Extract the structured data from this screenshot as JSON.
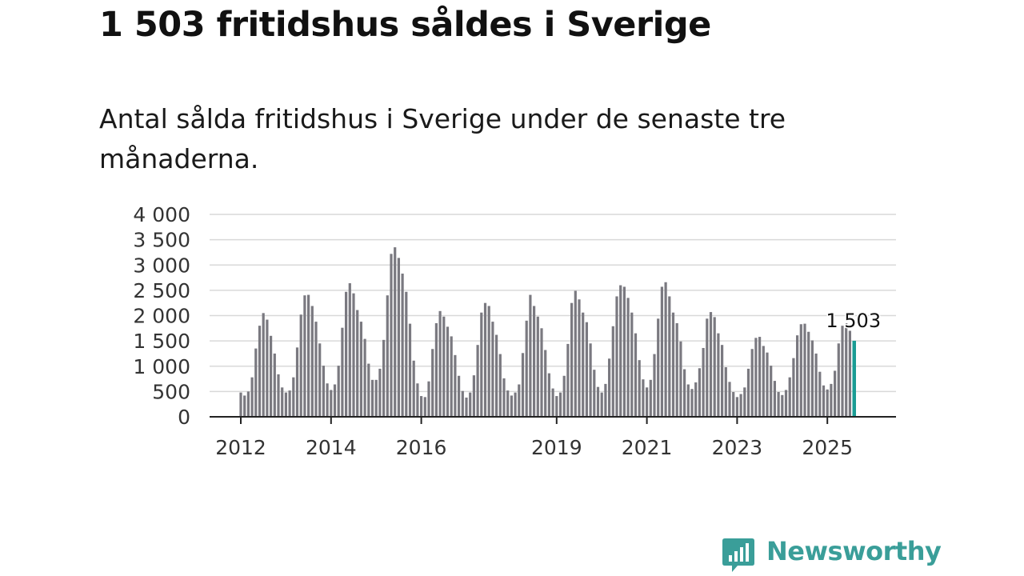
{
  "title": "1 503 fritidshus såldes i Sverige",
  "subtitle": "Antal sålda fritidshus i Sverige under de senaste tre månaderna.",
  "logo": {
    "name": "Newsworthy",
    "icon": "newsworthy-logo-icon",
    "color": "#3a9e99"
  },
  "colors": {
    "bar": "#7a7980",
    "highlight": "#1a9c94",
    "grid": "#d9d9d9",
    "axis": "#222222"
  },
  "chart_data": {
    "type": "bar",
    "ylim": [
      0,
      4000
    ],
    "yticks": [
      0,
      500,
      1000,
      1500,
      2000,
      2500,
      3000,
      3500,
      4000
    ],
    "ytick_labels": [
      "0",
      "500",
      "1 000",
      "1 500",
      "2 000",
      "2 500",
      "3 000",
      "3 500",
      "4 000"
    ],
    "xtick_labels": [
      {
        "label": "2012",
        "month_index": 0
      },
      {
        "label": "2014",
        "month_index": 24
      },
      {
        "label": "2016",
        "month_index": 48
      },
      {
        "label": "2019",
        "month_index": 84
      },
      {
        "label": "2021",
        "month_index": 108
      },
      {
        "label": "2023",
        "month_index": 132
      },
      {
        "label": "2025",
        "month_index": 156
      }
    ],
    "start": "2012-01",
    "grid": true,
    "annotation": {
      "text": "1 503",
      "target": "last"
    },
    "values": [
      480,
      420,
      500,
      780,
      1350,
      1800,
      2050,
      1920,
      1600,
      1250,
      840,
      580,
      480,
      520,
      780,
      1370,
      2020,
      2400,
      2410,
      2190,
      1880,
      1450,
      1010,
      660,
      530,
      640,
      1010,
      1760,
      2470,
      2640,
      2440,
      2110,
      1880,
      1540,
      1050,
      730,
      730,
      950,
      1520,
      2400,
      3220,
      3350,
      3140,
      2830,
      2470,
      1840,
      1110,
      660,
      410,
      390,
      700,
      1340,
      1850,
      2090,
      1980,
      1780,
      1590,
      1220,
      810,
      510,
      380,
      480,
      820,
      1420,
      2060,
      2250,
      2190,
      1880,
      1620,
      1240,
      760,
      520,
      420,
      480,
      640,
      1260,
      1900,
      2410,
      2190,
      1980,
      1750,
      1320,
      860,
      560,
      410,
      480,
      810,
      1440,
      2250,
      2490,
      2320,
      2060,
      1870,
      1450,
      930,
      590,
      480,
      650,
      1150,
      1790,
      2380,
      2600,
      2570,
      2350,
      2060,
      1650,
      1120,
      740,
      580,
      730,
      1240,
      1940,
      2570,
      2660,
      2380,
      2060,
      1850,
      1490,
      940,
      640,
      550,
      680,
      960,
      1360,
      1940,
      2070,
      1970,
      1650,
      1420,
      980,
      690,
      490,
      390,
      450,
      580,
      950,
      1340,
      1560,
      1580,
      1400,
      1270,
      1010,
      710,
      490,
      430,
      530,
      780,
      1160,
      1610,
      1830,
      1840,
      1680,
      1510,
      1250,
      890,
      620,
      540,
      650,
      910,
      1450,
      1800,
      1850,
      1700,
      1503
    ]
  }
}
